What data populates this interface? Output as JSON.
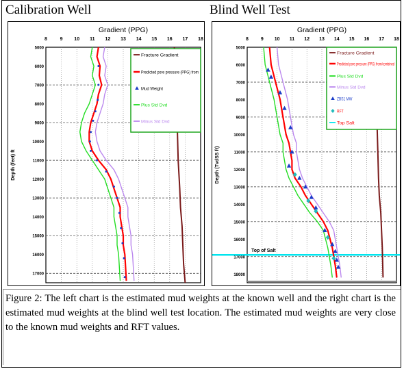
{
  "figure": {
    "left_title": "Calibration Well",
    "right_title": "Blind Well Test",
    "caption": "Figure 2:  The left chart is the estimated mud weights at the known well and the right chart is the estimated mud weights at the blind well test location. The estimated mud weights are very close to the known mud weights and RFT values."
  },
  "colors": {
    "fracture": "#7a1a1a",
    "predicted": "#ff0000",
    "plus_std": "#22dd22",
    "minus_std": "#bb88ee",
    "mud": "#1a3cc8",
    "rft": "#22bbbb",
    "top_salt": "#00e5ee",
    "legend_border": "#1fa51f"
  },
  "chart_data": [
    {
      "type": "line",
      "title": "Gradient (PPG)",
      "ylabel": "Depth (feet) ft",
      "x_ticks": [
        "8",
        "9",
        "10",
        "11",
        "12",
        "13",
        "14",
        "15",
        "16",
        "17",
        "18"
      ],
      "xlim": [
        8,
        18
      ],
      "ylim": [
        5000,
        17500
      ],
      "y_ticks": [
        "5000",
        "6000",
        "7000",
        "8000",
        "9000",
        "10000",
        "11000",
        "12000",
        "13000",
        "14000",
        "15000",
        "16000",
        "17000"
      ],
      "grid": true,
      "legend_position": "top-right",
      "legend": [
        "Fracture Gradient",
        "Predicted pore pressure (PPG) from",
        "Mud Weight",
        "Plus Std Dvd",
        "Minus Std Dvd"
      ],
      "series": [
        {
          "name": "Fracture Gradient",
          "key": "fracture",
          "style": "line",
          "x": [
            16.3,
            16.35,
            16.4,
            16.5,
            16.55,
            16.65,
            16.7,
            16.8,
            16.85,
            16.9,
            17.0
          ],
          "y": [
            5000,
            6500,
            8000,
            9500,
            11000,
            12500,
            13500,
            14500,
            15500,
            16500,
            17500
          ]
        },
        {
          "name": "Predicted pore pressure (PPG) from",
          "key": "predicted",
          "style": "line",
          "x": [
            11.4,
            11.3,
            11.5,
            11.45,
            11.6,
            11.4,
            11.3,
            11.1,
            10.9,
            10.8,
            10.8,
            11.0,
            11.4,
            11.9,
            12.2,
            12.4,
            12.6,
            12.8,
            12.8,
            12.9,
            13.0,
            13.0,
            13.1,
            13.2
          ],
          "y": [
            5000,
            5500,
            6000,
            6500,
            7000,
            7500,
            8000,
            8500,
            9000,
            9500,
            10000,
            10500,
            11000,
            11500,
            12000,
            12500,
            13000,
            13500,
            14000,
            14500,
            15000,
            15500,
            16000,
            17400
          ]
        },
        {
          "name": "Mud Weight",
          "key": "mud",
          "style": "dot",
          "x": [
            11.4,
            11.4,
            11.35,
            11.2,
            11.05,
            10.9,
            10.85,
            10.9,
            11.3,
            11.9,
            12.4,
            12.6,
            12.75,
            12.85,
            12.95,
            13.05,
            13.1
          ],
          "y": [
            6000,
            7000,
            7800,
            8400,
            8900,
            9500,
            10000,
            10500,
            11000,
            11600,
            12400,
            13000,
            13800,
            14600,
            15400,
            16200,
            17200
          ]
        },
        {
          "name": "Plus Std Dvd",
          "key": "plus_std",
          "style": "line",
          "x": [
            11.0,
            10.9,
            11.1,
            11.0,
            11.2,
            11.0,
            10.8,
            10.5,
            10.3,
            10.2,
            10.3,
            10.6,
            11.0,
            11.4,
            11.8,
            12.0,
            12.2,
            12.4,
            12.4,
            12.5,
            12.6,
            12.6,
            12.7,
            12.8
          ],
          "y": [
            5000,
            5500,
            6000,
            6500,
            7000,
            7500,
            8000,
            8500,
            9000,
            9500,
            10000,
            10500,
            11000,
            11500,
            12000,
            12500,
            13000,
            13500,
            14000,
            14500,
            15000,
            15500,
            16000,
            17400
          ]
        },
        {
          "name": "Minus Std Dvd",
          "key": "minus_std",
          "style": "line",
          "x": [
            11.8,
            11.7,
            11.9,
            11.8,
            12.0,
            11.8,
            11.7,
            11.5,
            11.3,
            11.2,
            11.3,
            11.5,
            11.9,
            12.4,
            12.7,
            12.9,
            13.1,
            13.3,
            13.3,
            13.4,
            13.5,
            13.5,
            13.6,
            13.7
          ],
          "y": [
            5000,
            5500,
            6000,
            6500,
            7000,
            7500,
            8000,
            8500,
            9000,
            9500,
            10000,
            10500,
            11000,
            11500,
            12000,
            12500,
            13000,
            13500,
            14000,
            14500,
            15000,
            15500,
            16000,
            17400
          ]
        }
      ]
    },
    {
      "type": "line",
      "title": "Gradient (PPG)",
      "ylabel": "Depth (TvdSS ft)",
      "x_ticks": [
        "8",
        "9",
        "10",
        "11",
        "12",
        "13",
        "14",
        "15",
        "16",
        "17",
        "18"
      ],
      "xlim": [
        8,
        18
      ],
      "ylim": [
        5000,
        18500
      ],
      "y_ticks": [
        "5000",
        "6000",
        "7000",
        "8000",
        "9000",
        "10000",
        "11000",
        "12000",
        "13000",
        "14000",
        "15000",
        "16000",
        "17000",
        "18000"
      ],
      "grid": true,
      "legend_position": "top-right",
      "legend": [
        "Fracture Gradient",
        "Predicted pore pressure (PPG) from/combined",
        "Plus Std Dvd",
        "Minus Std Dvd",
        "ZBS1 MW",
        "RFT",
        "Top Salt"
      ],
      "annotations": [
        "Top of Salt"
      ],
      "top_salt_depth": 16900,
      "series": [
        {
          "name": "Fracture Gradient",
          "key": "fracture",
          "style": "line",
          "x": [
            16.5,
            16.55,
            16.6,
            16.7,
            16.75,
            16.8,
            16.85,
            16.95,
            17.0,
            17.05,
            17.1
          ],
          "y": [
            5000,
            6500,
            8000,
            9500,
            11000,
            12500,
            13500,
            14500,
            15500,
            16500,
            18200
          ]
        },
        {
          "name": "Predicted pore pressure (PPG) from/combined",
          "key": "predicted",
          "style": "line",
          "x": [
            9.5,
            9.6,
            9.9,
            10.2,
            10.4,
            10.6,
            10.8,
            10.9,
            11.0,
            11.0,
            11.2,
            11.6,
            11.9,
            12.3,
            12.7,
            13.1,
            13.4,
            13.7,
            13.9,
            14.0
          ],
          "y": [
            5000,
            6000,
            7000,
            8000,
            9000,
            10000,
            10500,
            11000,
            11500,
            12000,
            12500,
            13000,
            13500,
            14000,
            14500,
            15000,
            15500,
            16500,
            17500,
            18200
          ]
        },
        {
          "name": "Plus Std Dvd",
          "key": "plus_std",
          "style": "line",
          "x": [
            9.1,
            9.2,
            9.5,
            9.8,
            10.0,
            10.2,
            10.4,
            10.4,
            10.5,
            10.6,
            10.8,
            11.1,
            11.4,
            11.8,
            12.2,
            12.7,
            13.1,
            13.4,
            13.6,
            13.7
          ],
          "y": [
            5000,
            6000,
            7000,
            8000,
            9000,
            10000,
            10500,
            11000,
            11500,
            12000,
            12500,
            13000,
            13500,
            14000,
            14500,
            15000,
            15500,
            16500,
            17500,
            18200
          ]
        },
        {
          "name": "Minus Std Dvd",
          "key": "minus_std",
          "style": "line",
          "x": [
            10.0,
            10.1,
            10.4,
            10.7,
            10.9,
            11.1,
            11.3,
            11.3,
            11.4,
            11.5,
            11.7,
            12.0,
            12.3,
            12.7,
            13.1,
            13.5,
            13.8,
            14.0,
            14.2,
            14.3
          ],
          "y": [
            5000,
            6000,
            7000,
            8000,
            9000,
            10000,
            10500,
            11000,
            11500,
            12000,
            12500,
            13000,
            13500,
            14000,
            14500,
            15000,
            15500,
            16500,
            17500,
            18200
          ]
        },
        {
          "name": "ZBS1 MW",
          "key": "mud",
          "style": "triangle",
          "x": [
            9.4,
            9.6,
            10.2,
            10.5,
            10.9,
            11.0,
            10.8,
            11.5,
            11.9,
            12.3,
            12.6,
            13.2,
            13.7,
            13.9,
            14.0,
            14.1
          ],
          "y": [
            6300,
            6700,
            7600,
            8500,
            9600,
            11000,
            11800,
            12500,
            13000,
            13600,
            14200,
            15500,
            16300,
            16700,
            17200,
            17600
          ]
        },
        {
          "name": "RFT",
          "key": "rft",
          "style": "diamond",
          "x": [
            11.2,
            12.1,
            12.6,
            13.4,
            13.8
          ],
          "y": [
            12300,
            13800,
            14400,
            15900,
            17100
          ]
        }
      ]
    }
  ]
}
